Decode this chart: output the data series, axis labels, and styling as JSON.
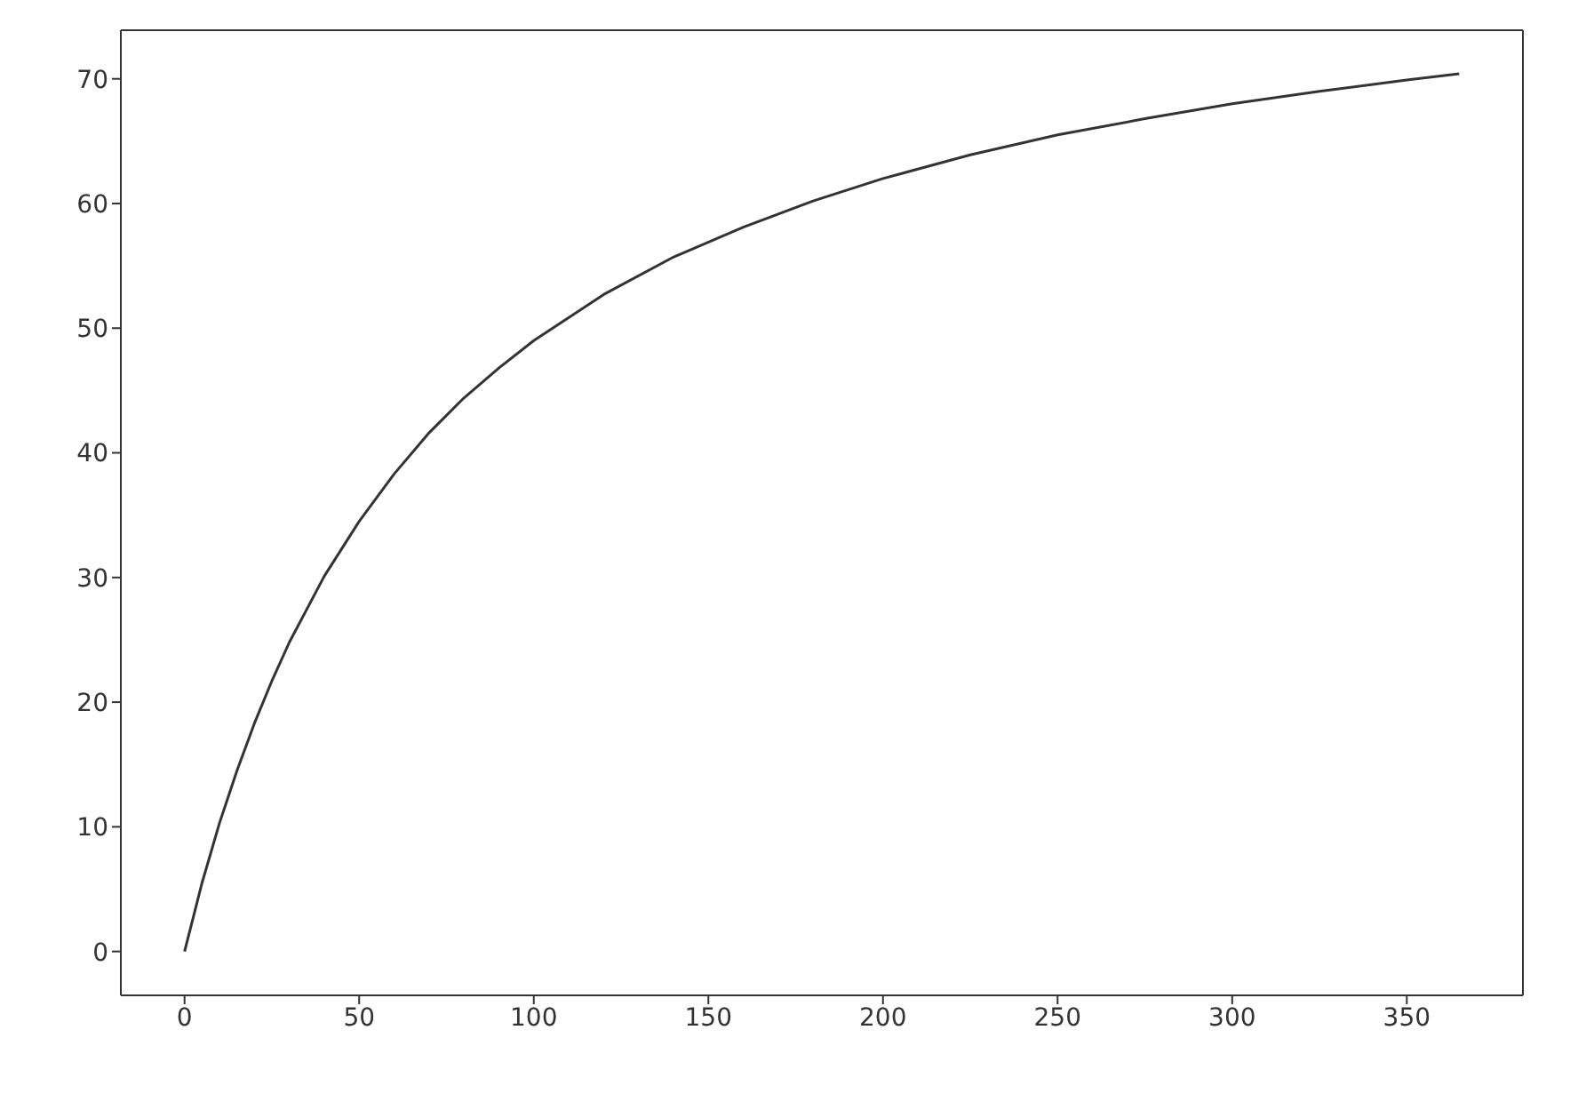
{
  "chart_data": {
    "type": "line",
    "x": [
      0,
      5,
      10,
      15,
      20,
      25,
      30,
      40,
      50,
      60,
      70,
      80,
      90,
      100,
      120,
      140,
      160,
      180,
      200,
      225,
      250,
      275,
      300,
      325,
      350,
      365
    ],
    "series": [
      {
        "color": "#333333",
        "values": [
          0,
          5.5,
          10.3,
          14.5,
          18.3,
          21.7,
          24.8,
          30.1,
          34.5,
          38.3,
          41.6,
          44.4,
          46.8,
          49.0,
          52.7,
          55.7,
          58.1,
          60.2,
          62.0,
          63.9,
          65.5,
          66.8,
          68.0,
          69.0,
          69.9,
          70.4
        ]
      }
    ],
    "xlim": [
      -18.25,
      383.25
    ],
    "ylim": [
      -3.52,
      73.9
    ],
    "xticks": [
      0,
      50,
      100,
      150,
      200,
      250,
      300,
      350
    ],
    "yticks": [
      0,
      10,
      20,
      30,
      40,
      50,
      60,
      70
    ],
    "grid": false,
    "marker": "none",
    "line_style": "solid"
  }
}
